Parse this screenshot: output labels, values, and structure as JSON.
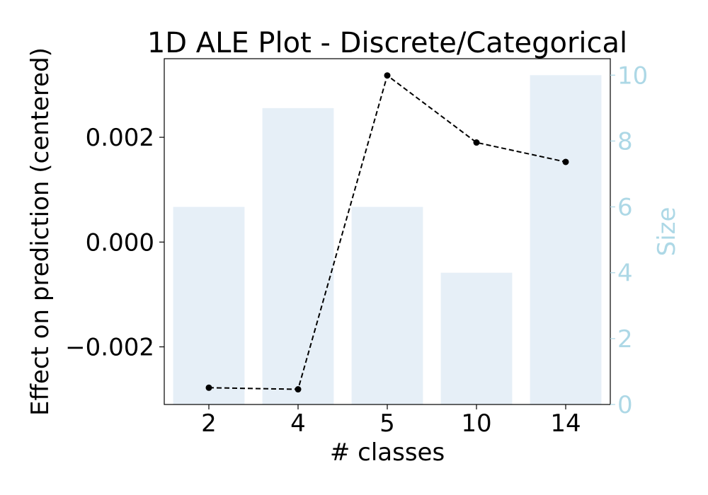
{
  "chart_data": {
    "type": "bar",
    "title": "1D ALE Plot - Discrete/Categorical",
    "xlabel": "# classes",
    "ylabel": "Effect on prediction (centered)",
    "y2label": "Size",
    "categories": [
      "2",
      "4",
      "5",
      "10",
      "14"
    ],
    "bar_series": {
      "name": "Size",
      "axis": "right",
      "values": [
        6,
        9,
        6,
        4,
        10
      ]
    },
    "line_series": {
      "name": "Effect",
      "axis": "left",
      "values": [
        -0.00278,
        -0.00281,
        0.00318,
        0.0019,
        0.00153
      ]
    },
    "ylim": [
      -0.0031,
      0.0035
    ],
    "y2lim": [
      0,
      10.5
    ],
    "yticks": [
      -0.002,
      0.0,
      0.002
    ],
    "ytick_labels": [
      "−0.002",
      "0.000",
      "0.002"
    ],
    "y2ticks": [
      0,
      2,
      4,
      6,
      8,
      10
    ],
    "y2tick_labels": [
      "0",
      "2",
      "4",
      "6",
      "8",
      "10"
    ],
    "grid": false,
    "colors": {
      "bars": "#e6eff7",
      "line": "#000000",
      "right_axis": "#add8e6",
      "spine": "#000000"
    }
  }
}
